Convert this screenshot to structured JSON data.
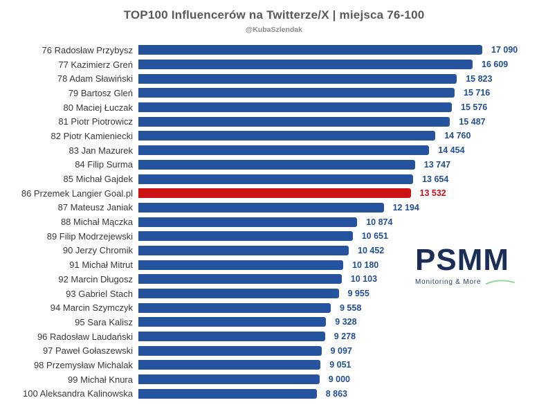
{
  "chart_data": {
    "type": "bar",
    "orientation": "horizontal",
    "title": "TOP100 Influencerów na Twitterze/X | miejsca 76-100",
    "subtitle": "@KubaSzlendak",
    "xlim": [
      0,
      17090
    ],
    "grid": false,
    "legend": false,
    "categories": [
      "76 Radosław Przybysz",
      "77 Kazimierz Greń",
      "78 Adam Sławiński",
      "79 Bartosz Gleń",
      "80 Maciej Łuczak",
      "81 Piotr Piotrowicz",
      "82 Piotr Kamieniecki",
      "83 Jan Mazurek",
      "84 Filip Surma",
      "85 Michał Gajdek",
      "86 Przemek Langier Goal.pl",
      "87 Mateusz Janiak",
      "88 Michał Mączka",
      "89 Filip Modrzejewski",
      "90 Jerzy Chromik",
      "91 Michał Mitrut",
      "92 Marcin Długosz",
      "93 Gabriel Stach",
      "94 Marcin Szymczyk",
      "95 Sara Kalisz",
      "96 Radosław Laudański",
      "97 Paweł Gołaszewski",
      "98 Przemysław Michalak",
      "99 Michał Knura",
      "100 Aleksandra Kalinowska"
    ],
    "values": [
      17090,
      16609,
      15823,
      15716,
      15576,
      15487,
      14760,
      14454,
      13747,
      13654,
      13532,
      12194,
      10874,
      10651,
      10452,
      10180,
      10103,
      9955,
      9558,
      9328,
      9278,
      9097,
      9051,
      9000,
      8863
    ],
    "value_labels": [
      "17 090",
      "16 609",
      "15 823",
      "15 716",
      "15 576",
      "15 487",
      "14 760",
      "14 454",
      "13 747",
      "13 654",
      "13 532",
      "12 194",
      "10 874",
      "10 651",
      "10 452",
      "10 180",
      "10 103",
      "9 955",
      "9 558",
      "9 328",
      "9 278",
      "9 097",
      "9 051",
      "9 000",
      "8 863"
    ],
    "highlight_index": 10,
    "bar_color": "#25539D",
    "highlight_color": "#CD1216",
    "value_label_color": "#1F4E97",
    "title_color": "#595959"
  },
  "logo": {
    "name": "PSMM",
    "tagline": "Monitoring & More",
    "text_color": "#1B2E55",
    "swoosh_color": "#8FD6A0"
  }
}
